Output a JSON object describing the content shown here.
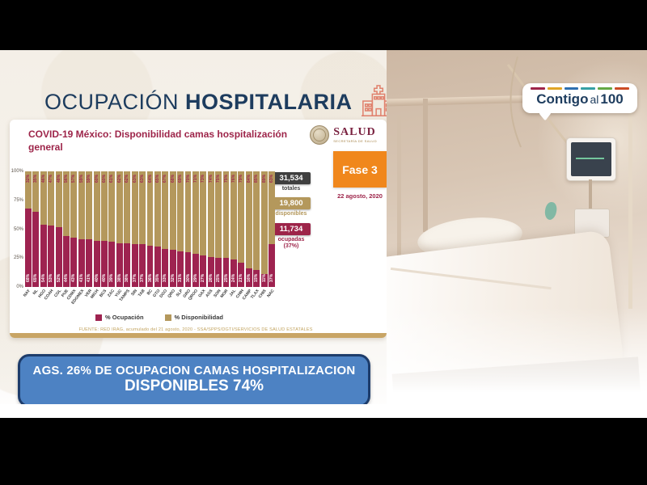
{
  "header": {
    "title_light": "OCUPACIÓN",
    "title_bold": "HOSPITALARIA"
  },
  "contigo_logo": {
    "text_bold1": "Contigo",
    "text_light": "al",
    "text_bold2": "100",
    "dash_colors": [
      "#9d2449",
      "#e0a526",
      "#2d6fb0",
      "#35a0a5",
      "#64a844",
      "#cc4b24"
    ]
  },
  "card": {
    "title": "COVID-19 México: Disponibilidad camas hospitalización general",
    "salud": {
      "name": "SALUD",
      "subtitle": "SECRETARÍA DE SALUD"
    },
    "footer": "FUENTE: RED IRAG, acumulado del 21 agosto, 2020 - SSA/SPPS/DGTI/SERVICIOS DE SALUD ESTATALES"
  },
  "fase": {
    "label": "Fase 3",
    "date": "22 agosto, 2020"
  },
  "stats": [
    {
      "value": "31,534",
      "label": "totales",
      "color": "#3f3f3f"
    },
    {
      "value": "19,800",
      "label": "disponibles",
      "color": "#b4985c"
    },
    {
      "value": "11,734",
      "label": "ocupadas",
      "sublabel": "(37%)",
      "color": "#9d2449"
    }
  ],
  "banner": {
    "line1": "AGS. 26% DE OCUPACION CAMAS HOSPITALIZACION",
    "line2": "DISPONIBLES 74%"
  },
  "chart_data": {
    "type": "bar",
    "stacked": true,
    "title": "COVID-19 México: Disponibilidad camas hospitalización general",
    "categories": [
      "NAY",
      "NL",
      "HGO",
      "COAH",
      "COL",
      "PUE",
      "CDMX",
      "EDOMEX",
      "VER",
      "MICH",
      "BCS",
      "ZAC",
      "YUC",
      "TAMPS",
      "SIN",
      "TAB",
      "BC",
      "GTO",
      "DGO",
      "QRO",
      "SLP",
      "GRO",
      "QROO",
      "OAX",
      "AGS",
      "SON",
      "MOR",
      "JAL",
      "CHIH",
      "CAMP",
      "TLAX",
      "CHIS",
      "NAC"
    ],
    "series": [
      {
        "name": "% Ocupación",
        "color": "#9e2350",
        "values": [
          68,
          65,
          54,
          53,
          52,
          44,
          43,
          41,
          41,
          40,
          40,
          39,
          38,
          38,
          37,
          37,
          36,
          35,
          33,
          32,
          31,
          30,
          29,
          27,
          26,
          25,
          25,
          24,
          21,
          16,
          15,
          11,
          37
        ]
      },
      {
        "name": "% Disponibilidad",
        "color": "#b4985c",
        "values": [
          32,
          35,
          46,
          47,
          48,
          56,
          57,
          59,
          59,
          60,
          60,
          61,
          62,
          62,
          63,
          63,
          64,
          65,
          67,
          68,
          69,
          70,
          71,
          73,
          74,
          75,
          75,
          76,
          79,
          84,
          85,
          89,
          63
        ]
      }
    ],
    "y_ticks": [
      "100%",
      "75%",
      "50%",
      "25%",
      "0%"
    ],
    "ylim": [
      0,
      100
    ],
    "legend_position": "bottom",
    "grid": false
  }
}
